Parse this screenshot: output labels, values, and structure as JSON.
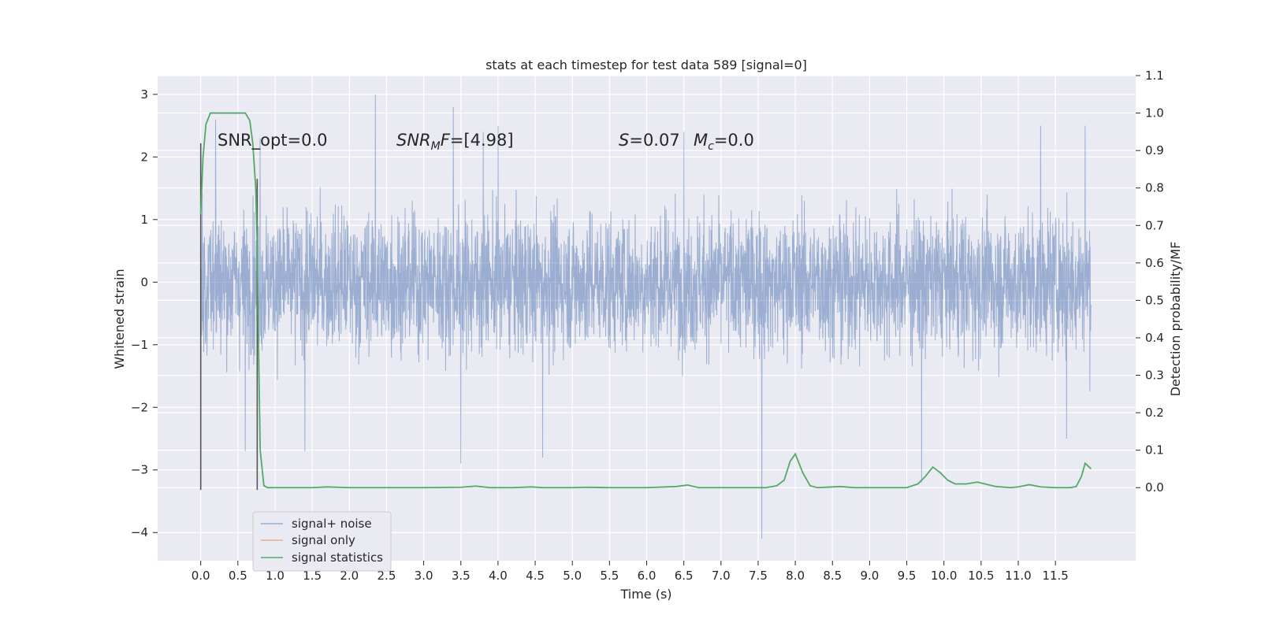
{
  "chart_data": {
    "type": "line",
    "title": "stats at each timestep for test data 589 [signal=0]",
    "xlabel": "Time (s)",
    "ylabel": "Whitened strain",
    "y2label": "Detection probability/MF",
    "xlim": [
      -0.58,
      12.58
    ],
    "ylim": [
      -4.45,
      3.3
    ],
    "y2lim": [
      -0.195,
      1.1
    ],
    "xticks": [
      "0.0",
      "0.5",
      "1.0",
      "1.5",
      "2.0",
      "2.5",
      "3.0",
      "3.5",
      "4.0",
      "4.5",
      "5.0",
      "5.5",
      "6.0",
      "6.5",
      "7.0",
      "7.5",
      "8.0",
      "8.5",
      "9.0",
      "9.5",
      "10.0",
      "10.5",
      "11.0",
      "11.5"
    ],
    "yticks": [
      "−4",
      "−3",
      "−2",
      "−1",
      "0",
      "1",
      "2",
      "3"
    ],
    "y2ticks": [
      "0.0",
      "0.1",
      "0.2",
      "0.3",
      "0.4",
      "0.5",
      "0.6",
      "0.7",
      "0.8",
      "0.9",
      "1.0",
      "1.1"
    ],
    "grid": true,
    "legend_position": "lower-left",
    "annotations": {
      "snr_opt": "SNR_opt=0.0",
      "snr_mf_sym": "SNR",
      "snr_mf_sub": "M",
      "snr_mf_rest": "F=[4.98]",
      "s_sym": "S",
      "s_val": "=0.07",
      "mc_sym": "M",
      "mc_sub": "c",
      "mc_val": "=0.0"
    },
    "vlines": [
      {
        "x": 0.0,
        "ymin": -3.32,
        "ymax": 2.22
      },
      {
        "x": 0.76,
        "ymin": -3.32,
        "ymax": 1.65
      }
    ],
    "series": [
      {
        "name": "signal+ noise",
        "color": "#4c72b0",
        "axis": "left",
        "x_range": [
          0.0,
          11.98
        ],
        "typical_band": [
          -1.1,
          1.1
        ],
        "peak_highs": [
          [
            0.2,
            2.6
          ],
          [
            0.6,
            2.55
          ],
          [
            0.8,
            2.3
          ],
          [
            2.35,
            3.0
          ],
          [
            3.4,
            2.8
          ],
          [
            3.8,
            2.4
          ],
          [
            4.0,
            2.5
          ],
          [
            6.5,
            2.4
          ],
          [
            11.3,
            2.5
          ],
          [
            11.9,
            2.5
          ]
        ],
        "peak_lows": [
          [
            0.6,
            -2.7
          ],
          [
            1.4,
            -2.7
          ],
          [
            3.5,
            -2.9
          ],
          [
            4.6,
            -2.8
          ],
          [
            7.55,
            -4.1
          ],
          [
            9.7,
            -3.2
          ],
          [
            11.65,
            -2.5
          ]
        ]
      },
      {
        "name": "signal only",
        "color": "#dd8452",
        "axis": "left",
        "x": [],
        "y": []
      },
      {
        "name": "signal statistics",
        "color": "#55a868",
        "axis": "right",
        "x": [
          0.0,
          0.03,
          0.07,
          0.13,
          0.2,
          0.3,
          0.4,
          0.5,
          0.6,
          0.66,
          0.7,
          0.74,
          0.76,
          0.78,
          0.8,
          0.85,
          0.9,
          1.0,
          1.2,
          1.5,
          1.7,
          2.0,
          2.5,
          3.0,
          3.5,
          3.7,
          3.9,
          4.2,
          4.45,
          4.6,
          5.0,
          5.2,
          5.5,
          6.0,
          6.4,
          6.55,
          6.7,
          7.0,
          7.4,
          7.6,
          7.75,
          7.85,
          7.93,
          8.0,
          8.1,
          8.2,
          8.3,
          8.5,
          8.6,
          8.8,
          9.0,
          9.5,
          9.65,
          9.75,
          9.85,
          9.95,
          10.05,
          10.15,
          10.3,
          10.45,
          10.55,
          10.7,
          10.9,
          11.0,
          11.15,
          11.3,
          11.5,
          11.7,
          11.78,
          11.85,
          11.9,
          11.98
        ],
        "y": [
          0.73,
          0.88,
          0.97,
          1.0,
          1.0,
          1.0,
          1.0,
          1.0,
          1.0,
          0.98,
          0.92,
          0.8,
          0.65,
          0.35,
          0.1,
          0.005,
          0.0,
          0.0,
          0.0,
          0.0,
          0.002,
          0.0,
          0.0,
          0.0,
          0.001,
          0.004,
          0.0,
          0.0,
          0.002,
          0.0,
          0.0,
          0.001,
          0.0,
          0.0,
          0.003,
          0.007,
          0.0,
          0.0,
          0.0,
          0.0,
          0.005,
          0.02,
          0.07,
          0.09,
          0.04,
          0.005,
          0.0,
          0.002,
          0.003,
          0.0,
          0.0,
          0.0,
          0.01,
          0.03,
          0.055,
          0.04,
          0.02,
          0.01,
          0.01,
          0.015,
          0.01,
          0.003,
          0.0,
          0.002,
          0.008,
          0.002,
          0.0,
          0.0,
          0.003,
          0.03,
          0.065,
          0.05
        ]
      }
    ]
  }
}
